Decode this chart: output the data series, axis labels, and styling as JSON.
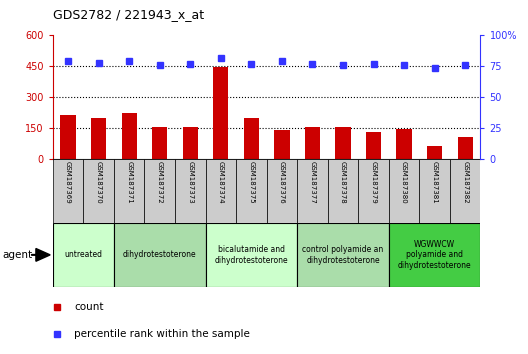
{
  "title": "GDS2782 / 221943_x_at",
  "samples": [
    "GSM187369",
    "GSM187370",
    "GSM187371",
    "GSM187372",
    "GSM187373",
    "GSM187374",
    "GSM187375",
    "GSM187376",
    "GSM187377",
    "GSM187378",
    "GSM187379",
    "GSM187380",
    "GSM187381",
    "GSM187382"
  ],
  "counts": [
    215,
    200,
    225,
    155,
    155,
    445,
    200,
    140,
    155,
    155,
    130,
    145,
    65,
    110
  ],
  "percentiles": [
    79,
    78,
    79,
    76,
    77,
    82,
    77,
    79,
    77,
    76,
    77,
    76,
    74,
    76
  ],
  "bar_color": "#cc0000",
  "dot_color": "#3333ff",
  "ylim_left": [
    0,
    600
  ],
  "ylim_right": [
    0,
    100
  ],
  "yticks_left": [
    0,
    150,
    300,
    450,
    600
  ],
  "yticks_right": [
    0,
    25,
    50,
    75,
    100
  ],
  "ytick_labels_left": [
    "0",
    "150",
    "300",
    "450",
    "600"
  ],
  "ytick_labels_right": [
    "0",
    "25",
    "50",
    "75",
    "100%"
  ],
  "hlines": [
    150,
    300,
    450
  ],
  "groups": [
    {
      "label": "untreated",
      "indices": [
        0,
        1
      ],
      "color": "#ccffcc"
    },
    {
      "label": "dihydrotestoterone",
      "indices": [
        2,
        3,
        4
      ],
      "color": "#aaddaa"
    },
    {
      "label": "bicalutamide and\ndihydrotestoterone",
      "indices": [
        5,
        6,
        7
      ],
      "color": "#ccffcc"
    },
    {
      "label": "control polyamide an\ndihydrotestoterone",
      "indices": [
        8,
        9,
        10
      ],
      "color": "#aaddaa"
    },
    {
      "label": "WGWWCW\npolyamide and\ndihydrotestoterone",
      "indices": [
        11,
        12,
        13
      ],
      "color": "#44cc44"
    }
  ],
  "legend_count_label": "count",
  "legend_pct_label": "percentile rank within the sample",
  "agent_label": "agent",
  "bg_color": "#ffffff",
  "label_box_color": "#cccccc",
  "bar_width": 0.5
}
